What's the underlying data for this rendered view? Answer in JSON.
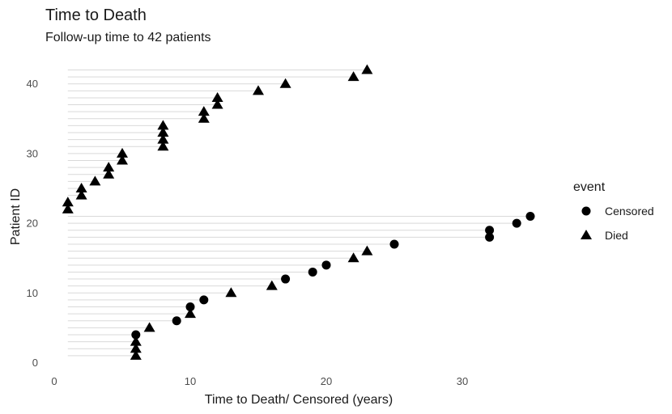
{
  "chart_data": {
    "type": "scatter",
    "title": "Time to Death",
    "subtitle": "Follow-up time to 42 patients",
    "xlabel": "Time to Death/ Censored (years)",
    "ylabel": "Patient ID",
    "xlim": [
      0,
      35
    ],
    "ylim": [
      0,
      42
    ],
    "x_ticks": [
      0,
      10,
      20,
      30
    ],
    "y_ticks": [
      0,
      10,
      20,
      30,
      40
    ],
    "grid": "horizontal segments from x=1 to each point",
    "legend": {
      "title": "event",
      "position": "right",
      "entries": [
        {
          "label": "Censored",
          "shape": "circle"
        },
        {
          "label": "Died",
          "shape": "triangle"
        }
      ]
    },
    "points": [
      {
        "id": 1,
        "time": 6,
        "event": "Died"
      },
      {
        "id": 2,
        "time": 6,
        "event": "Died"
      },
      {
        "id": 3,
        "time": 6,
        "event": "Died"
      },
      {
        "id": 4,
        "time": 6,
        "event": "Censored"
      },
      {
        "id": 5,
        "time": 7,
        "event": "Died"
      },
      {
        "id": 6,
        "time": 9,
        "event": "Censored"
      },
      {
        "id": 7,
        "time": 10,
        "event": "Died"
      },
      {
        "id": 8,
        "time": 10,
        "event": "Censored"
      },
      {
        "id": 9,
        "time": 11,
        "event": "Censored"
      },
      {
        "id": 10,
        "time": 13,
        "event": "Died"
      },
      {
        "id": 11,
        "time": 16,
        "event": "Died"
      },
      {
        "id": 12,
        "time": 17,
        "event": "Censored"
      },
      {
        "id": 13,
        "time": 19,
        "event": "Censored"
      },
      {
        "id": 14,
        "time": 20,
        "event": "Censored"
      },
      {
        "id": 15,
        "time": 22,
        "event": "Died"
      },
      {
        "id": 16,
        "time": 23,
        "event": "Died"
      },
      {
        "id": 17,
        "time": 25,
        "event": "Censored"
      },
      {
        "id": 18,
        "time": 32,
        "event": "Censored"
      },
      {
        "id": 19,
        "time": 32,
        "event": "Censored"
      },
      {
        "id": 20,
        "time": 34,
        "event": "Censored"
      },
      {
        "id": 21,
        "time": 35,
        "event": "Censored"
      },
      {
        "id": 22,
        "time": 1,
        "event": "Died"
      },
      {
        "id": 23,
        "time": 1,
        "event": "Died"
      },
      {
        "id": 24,
        "time": 2,
        "event": "Died"
      },
      {
        "id": 25,
        "time": 2,
        "event": "Died"
      },
      {
        "id": 26,
        "time": 3,
        "event": "Died"
      },
      {
        "id": 27,
        "time": 4,
        "event": "Died"
      },
      {
        "id": 28,
        "time": 4,
        "event": "Died"
      },
      {
        "id": 29,
        "time": 5,
        "event": "Died"
      },
      {
        "id": 30,
        "time": 5,
        "event": "Died"
      },
      {
        "id": 31,
        "time": 8,
        "event": "Died"
      },
      {
        "id": 32,
        "time": 8,
        "event": "Died"
      },
      {
        "id": 33,
        "time": 8,
        "event": "Died"
      },
      {
        "id": 34,
        "time": 8,
        "event": "Died"
      },
      {
        "id": 35,
        "time": 11,
        "event": "Died"
      },
      {
        "id": 36,
        "time": 11,
        "event": "Died"
      },
      {
        "id": 37,
        "time": 12,
        "event": "Died"
      },
      {
        "id": 38,
        "time": 12,
        "event": "Died"
      },
      {
        "id": 39,
        "time": 15,
        "event": "Died"
      },
      {
        "id": 40,
        "time": 17,
        "event": "Died"
      },
      {
        "id": 41,
        "time": 22,
        "event": "Died"
      },
      {
        "id": 42,
        "time": 23,
        "event": "Died"
      }
    ],
    "colors": {
      "marker": "#000000",
      "segment": "#d9d9d9"
    }
  }
}
